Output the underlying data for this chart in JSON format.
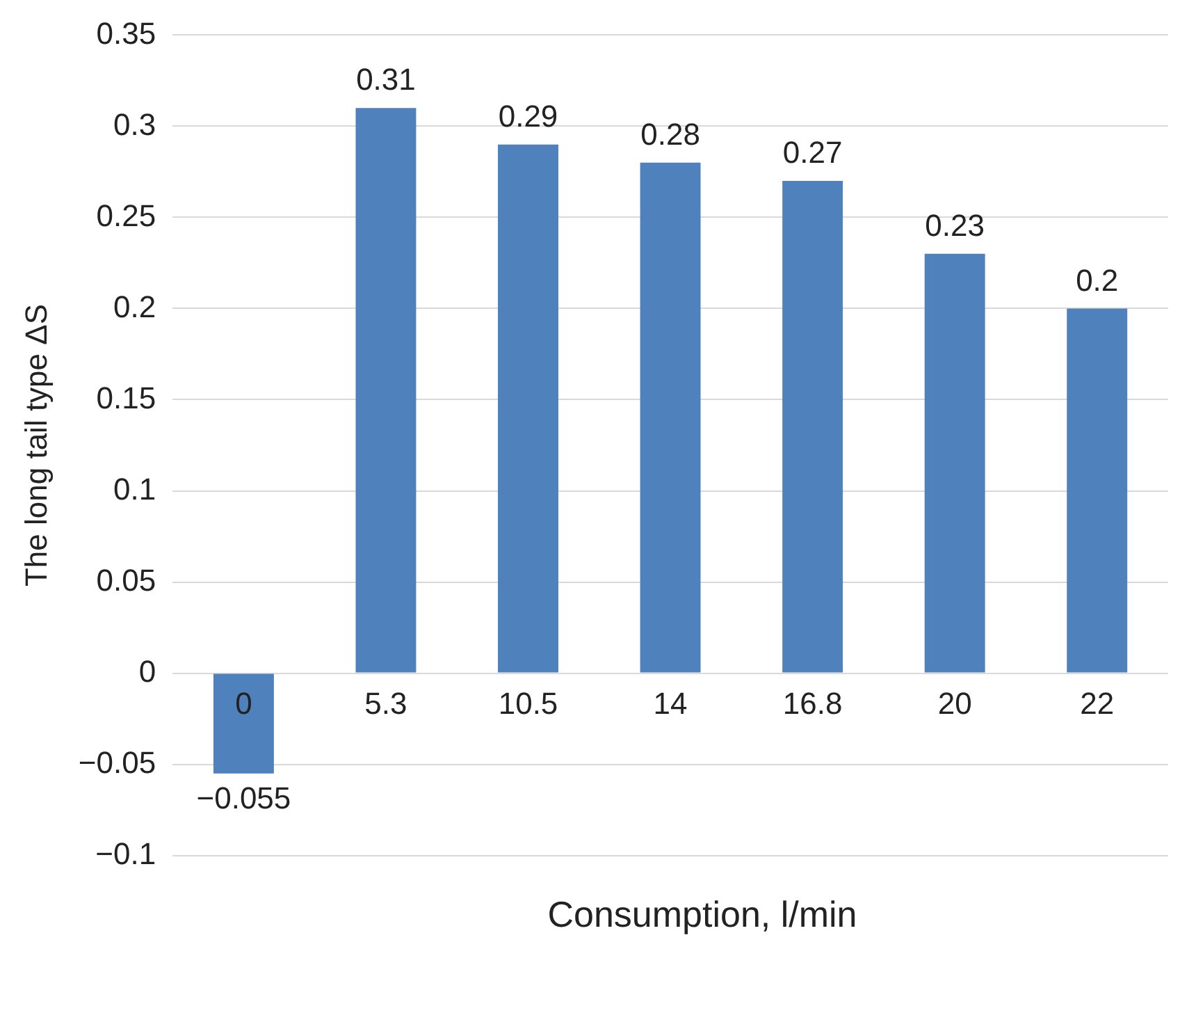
{
  "chart_data": {
    "type": "bar",
    "xlabel": "Consumption, l/min",
    "ylabel": "The long tail type ΔS",
    "categories": [
      "0",
      "5.3",
      "10.5",
      "14",
      "16.8",
      "20",
      "22"
    ],
    "values": [
      -0.055,
      0.31,
      0.29,
      0.28,
      0.27,
      0.23,
      0.2
    ],
    "value_labels": [
      "−0.055",
      "0.31",
      "0.29",
      "0.28",
      "0.27",
      "0.23",
      "0.2"
    ],
    "color": "#4f81bd",
    "ylim": [
      -0.1,
      0.35
    ],
    "yticks": [
      {
        "value": -0.1,
        "label": "−0.1"
      },
      {
        "value": -0.05,
        "label": "−0.05"
      },
      0,
      0.05,
      0.1,
      0.15,
      0.2,
      0.25,
      0.3,
      0.35
    ],
    "grid": "y"
  }
}
